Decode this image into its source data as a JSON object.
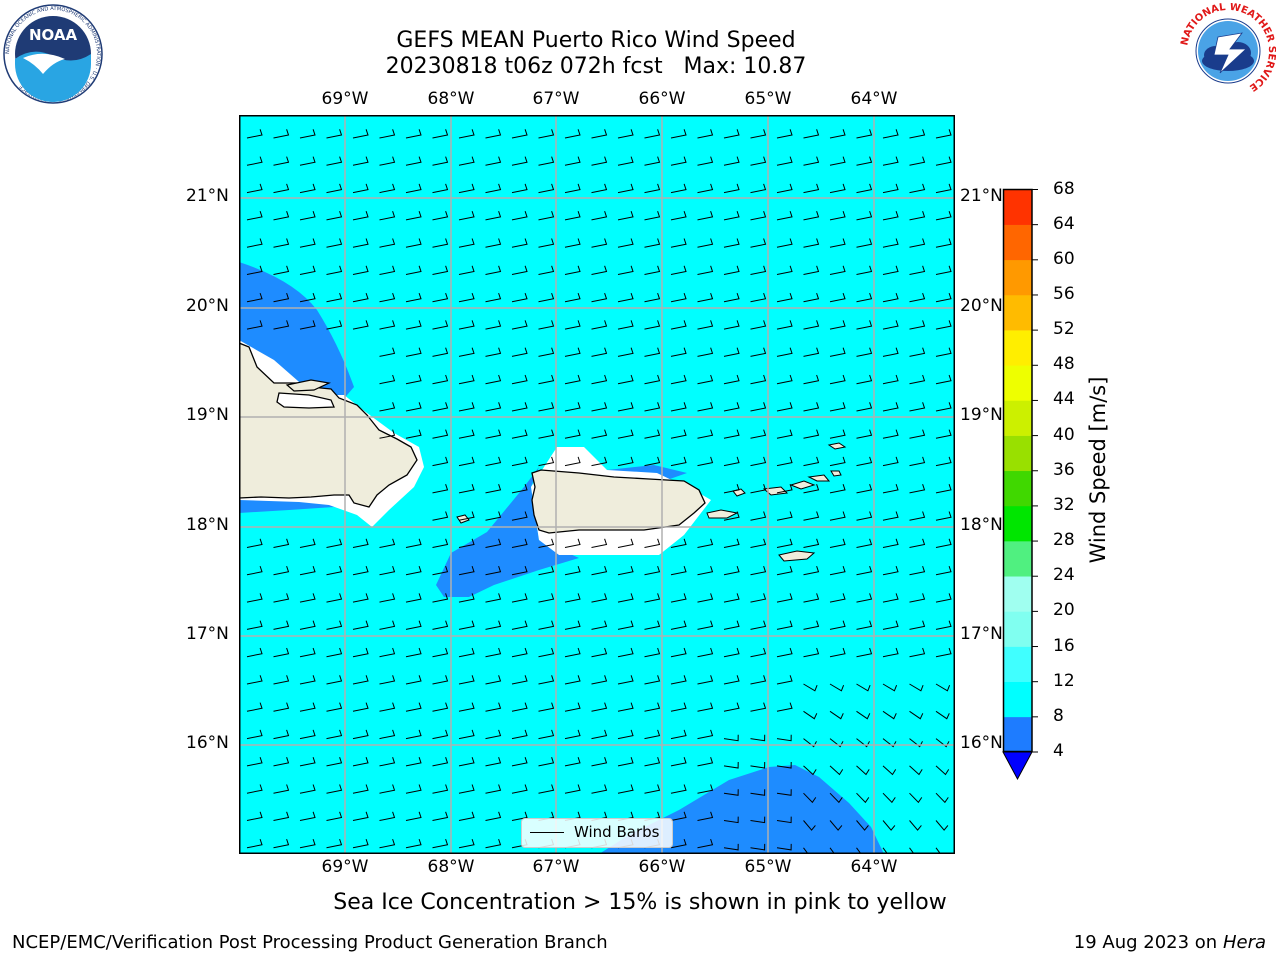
{
  "title": {
    "line1": "GEFS MEAN Puerto Rico Wind Speed",
    "line2": "20230818 t06z 072h fcst   Max: 10.87"
  },
  "map": {
    "lon_ticks": [
      "69°W",
      "68°W",
      "67°W",
      "66°W",
      "65°W",
      "64°W"
    ],
    "lat_ticks": [
      "21°N",
      "20°N",
      "19°N",
      "18°N",
      "17°N",
      "16°N"
    ],
    "legend_label": "Wind Barbs",
    "colors": {
      "ocean_light": "#00ffff",
      "ocean_dark": "#1e8cff",
      "land": "#efeddc",
      "grid": "#b0b0b0"
    }
  },
  "colorbar": {
    "title": "Wind Speed [m/s]",
    "levels": [
      "4",
      "8",
      "12",
      "16",
      "20",
      "24",
      "28",
      "32",
      "36",
      "40",
      "44",
      "48",
      "52",
      "56",
      "60",
      "64",
      "68"
    ],
    "colors": [
      "#1e7cff",
      "#00ffff",
      "#40ffff",
      "#80fff0",
      "#a0fff0",
      "#50f080",
      "#00e600",
      "#40d800",
      "#99e000",
      "#ccf000",
      "#eeff00",
      "#ffee00",
      "#ffbb00",
      "#ff9900",
      "#ff6600",
      "#ff3300",
      "#ff0000"
    ],
    "under_color": "#0000ff"
  },
  "subtitle": "Sea Ice Concentration > 15% is shown in pink to yellow",
  "footer": {
    "left": "NCEP/EMC/Verification Post Processing Product Generation Branch",
    "date": "19 Aug 2023 on",
    "machine": "Hera"
  },
  "logos": {
    "noaa_text": "NOAA",
    "noaa_ring": "NATIONAL OCEANIC AND ATMOSPHERIC ADMINISTRATION · U.S. DEPARTMENT OF COMMERCE",
    "nws_ring": "NATIONAL WEATHER SERVICE"
  }
}
